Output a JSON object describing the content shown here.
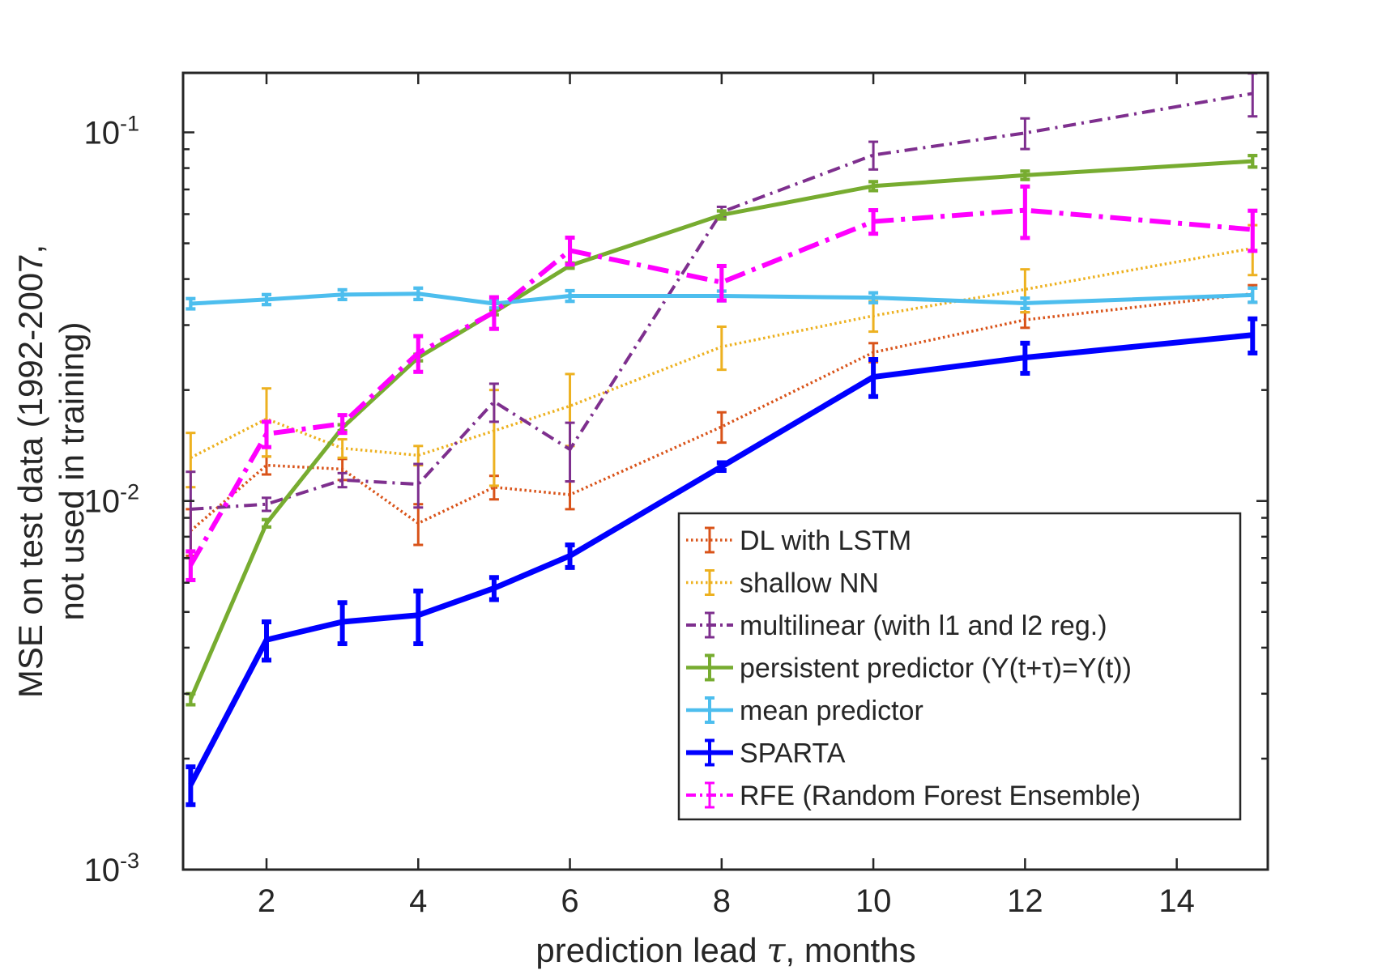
{
  "chart_data": {
    "type": "line",
    "xlabel_prefix": "prediction lead ",
    "xlabel_symbol": "τ",
    "xlabel_suffix": ", months",
    "ylabel_line1": "MSE on test data (1992-2007,",
    "ylabel_line2": "not used in training)",
    "yscale": "log",
    "xlim": [
      0.9,
      15.2
    ],
    "ylim": [
      0.001,
      0.145
    ],
    "x_ticks": [
      2,
      4,
      6,
      8,
      10,
      12,
      14
    ],
    "x_tick_labels": [
      "2",
      "4",
      "6",
      "8",
      "10",
      "12",
      "14"
    ],
    "y_ticks": [
      0.001,
      0.01,
      0.1
    ],
    "y_tick_labels": [
      {
        "base": "10",
        "exp": "-3"
      },
      {
        "base": "10",
        "exp": "-2"
      },
      {
        "base": "10",
        "exp": "-1"
      }
    ],
    "grid": false,
    "legend_position": "bottom-right",
    "x": [
      1,
      2,
      3,
      4,
      5,
      6,
      8,
      10,
      12,
      15
    ],
    "series": [
      {
        "name": "DL with LSTM",
        "color": "#D95319",
        "style": "dotted",
        "values": [
          0.0083,
          0.0125,
          0.0122,
          0.0087,
          0.0109,
          0.0104,
          0.0159,
          0.0253,
          0.031,
          0.0365
        ],
        "errors": [
          0.0012,
          0.0007,
          0.0008,
          0.0011,
          0.0008,
          0.0009,
          0.0015,
          0.0015,
          0.0015,
          0.002
        ]
      },
      {
        "name": "shallow NN",
        "color": "#EDB120",
        "style": "dotted",
        "values": [
          0.0131,
          0.0167,
          0.0139,
          0.0133,
          0.0155,
          0.0181,
          0.0262,
          0.0318,
          0.0375,
          0.0485
        ],
        "errors": [
          0.0022,
          0.0035,
          0.0008,
          0.0008,
          0.0045,
          0.004,
          0.0035,
          0.003,
          0.005,
          0.0075
        ]
      },
      {
        "name": "multilinear (with l1 and l2 reg.)",
        "color": "#7E2F8E",
        "style": "dashdot",
        "values": [
          0.0095,
          0.0098,
          0.0114,
          0.0111,
          0.0186,
          0.0138,
          0.0608,
          0.0868,
          0.0996,
          0.1275
        ],
        "errors": [
          0.0025,
          0.0004,
          0.0005,
          0.0015,
          0.0022,
          0.0025,
          0.002,
          0.0075,
          0.0095,
          0.017
        ]
      },
      {
        "name": "persistent predictor (Y(t+τ)=Y(t))",
        "color": "#77AC30",
        "style": "solid",
        "values": [
          0.0029,
          0.0087,
          0.0158,
          0.0245,
          0.0325,
          0.0435,
          0.0597,
          0.0715,
          0.0765,
          0.0835
        ],
        "errors": [
          0.0001,
          0.0002,
          0.0003,
          0.0005,
          0.0005,
          0.0007,
          0.0015,
          0.002,
          0.002,
          0.003
        ]
      },
      {
        "name": "mean predictor",
        "color": "#4DBEEE",
        "style": "solid",
        "values": [
          0.0343,
          0.0352,
          0.0363,
          0.0365,
          0.0343,
          0.036,
          0.036,
          0.0356,
          0.0344,
          0.0362
        ],
        "errors": [
          0.0011,
          0.0011,
          0.0011,
          0.0013,
          0.0009,
          0.0012,
          0.0011,
          0.0011,
          0.0011,
          0.0016
        ]
      },
      {
        "name": "SPARTA",
        "color": "#0000FF",
        "style": "solid",
        "values": [
          0.0017,
          0.0042,
          0.0047,
          0.0049,
          0.0058,
          0.0071,
          0.0124,
          0.0217,
          0.0245,
          0.0282
        ],
        "errors": [
          0.0002,
          0.0005,
          0.0006,
          0.0008,
          0.0004,
          0.0005,
          0.0003,
          0.0025,
          0.0023,
          0.003
        ]
      },
      {
        "name": "RFE (Random Forest Ensemble)",
        "color": "#FF00FF",
        "style": "dashdot",
        "values": [
          0.0067,
          0.0152,
          0.0162,
          0.0252,
          0.0325,
          0.0478,
          0.0392,
          0.0573,
          0.0615,
          0.0545
        ],
        "errors": [
          0.0006,
          0.0012,
          0.0009,
          0.0028,
          0.0032,
          0.004,
          0.0042,
          0.0042,
          0.0098,
          0.0068
        ]
      }
    ]
  }
}
